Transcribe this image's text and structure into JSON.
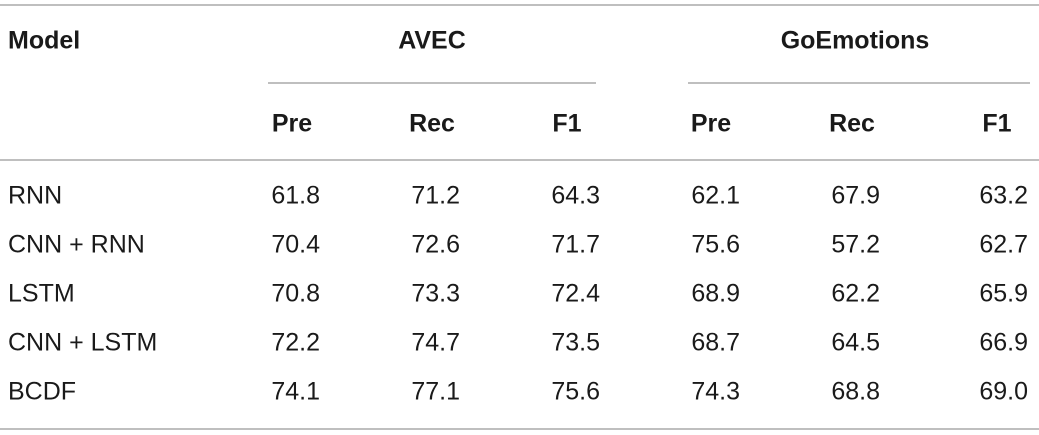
{
  "table": {
    "header": {
      "model": "Model",
      "groups": [
        "AVEC",
        "GoEmotions"
      ],
      "columns": [
        "Pre",
        "Rec",
        "F1",
        "Pre",
        "Rec",
        "F1"
      ]
    },
    "rows": [
      [
        "RNN",
        "61.8",
        "71.2",
        "64.3",
        "62.1",
        "67.9",
        "63.2"
      ],
      [
        "CNN + RNN",
        "70.4",
        "72.6",
        "71.7",
        "75.6",
        "57.2",
        "62.7"
      ],
      [
        "LSTM",
        "70.8",
        "73.3",
        "72.4",
        "68.9",
        "62.2",
        "65.9"
      ],
      [
        "CNN + LSTM",
        "72.2",
        "74.7",
        "73.5",
        "68.7",
        "64.5",
        "66.9"
      ],
      [
        "BCDF",
        "74.1",
        "77.1",
        "75.6",
        "74.3",
        "68.8",
        "69.0"
      ]
    ]
  }
}
